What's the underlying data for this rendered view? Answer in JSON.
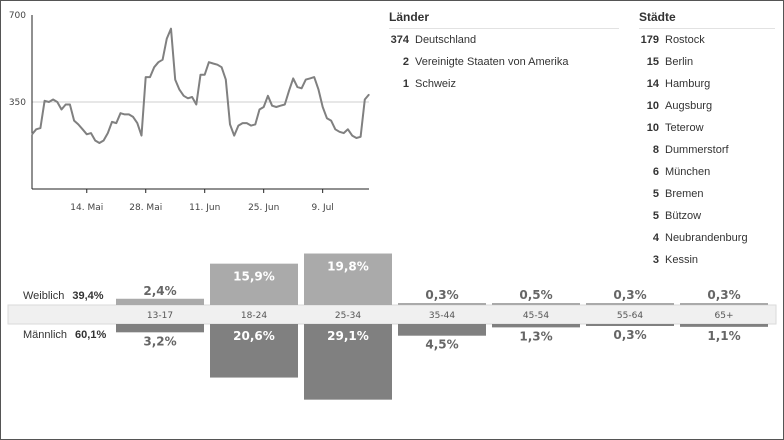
{
  "traffic_chart": {
    "y_ticks": [
      "700",
      "350"
    ],
    "x_ticks": [
      "14. Mai",
      "28. Mai",
      "11. Jun",
      "25. Jun",
      "9. Jul"
    ],
    "line_color": "#808080"
  },
  "countries": {
    "title": "Länder",
    "items": [
      {
        "count": "374",
        "name": "Deutschland"
      },
      {
        "count": "2",
        "name": "Vereinigte Staaten von Amerika"
      },
      {
        "count": "1",
        "name": "Schweiz"
      }
    ]
  },
  "cities": {
    "title": "Städte",
    "items": [
      {
        "count": "179",
        "name": "Rostock"
      },
      {
        "count": "15",
        "name": "Berlin"
      },
      {
        "count": "14",
        "name": "Hamburg"
      },
      {
        "count": "10",
        "name": "Augsburg"
      },
      {
        "count": "10",
        "name": "Teterow"
      },
      {
        "count": "8",
        "name": "Dummerstorf"
      },
      {
        "count": "6",
        "name": "München"
      },
      {
        "count": "5",
        "name": "Bremen"
      },
      {
        "count": "5",
        "name": "Bützow"
      },
      {
        "count": "4",
        "name": "Neubrandenburg"
      },
      {
        "count": "3",
        "name": "Kessin"
      }
    ]
  },
  "demographics": {
    "female": {
      "label": "Weiblich",
      "total": "39,4%"
    },
    "male": {
      "label": "Männlich",
      "total": "60,1%"
    }
  },
  "chart_data": [
    {
      "type": "line",
      "ylim": [
        0,
        700
      ],
      "yticks": [
        350,
        700
      ],
      "x_tick_labels": [
        "14. Mai",
        "28. Mai",
        "11. Jun",
        "25. Jun",
        "9. Jul"
      ],
      "series": [
        {
          "values": [
            220,
            240,
            245,
            355,
            350,
            360,
            350,
            320,
            340,
            340,
            275,
            260,
            240,
            220,
            225,
            195,
            185,
            195,
            225,
            270,
            265,
            305,
            300,
            300,
            290,
            265,
            215,
            450,
            450,
            490,
            510,
            520,
            605,
            645,
            440,
            400,
            375,
            365,
            370,
            340,
            460,
            460,
            510,
            505,
            500,
            490,
            440,
            260,
            215,
            255,
            265,
            265,
            255,
            260,
            320,
            330,
            375,
            335,
            330,
            335,
            340,
            395,
            445,
            410,
            405,
            440,
            445,
            450,
            400,
            330,
            285,
            275,
            240,
            230,
            225,
            240,
            215,
            205,
            210,
            360,
            380
          ]
        }
      ]
    },
    {
      "type": "bar",
      "categories": [
        "13-17",
        "18-24",
        "25-34",
        "35-44",
        "45-54",
        "55-64",
        "65+"
      ],
      "series": [
        {
          "name": "Weiblich",
          "values": [
            2.4,
            15.9,
            19.8,
            0.3,
            0.5,
            0.3,
            0.3
          ],
          "labels": [
            "2,4%",
            "15,9%",
            "19,8%",
            "0,3%",
            "0,5%",
            "0,3%",
            "0,3%"
          ],
          "color": "#aaaaaa"
        },
        {
          "name": "Männlich",
          "values": [
            3.2,
            20.6,
            29.1,
            4.5,
            1.3,
            0.3,
            1.1
          ],
          "labels": [
            "3,2%",
            "20,6%",
            "29,1%",
            "4,5%",
            "1,3%",
            "0,3%",
            "1,1%"
          ],
          "color": "#808080"
        }
      ]
    }
  ]
}
